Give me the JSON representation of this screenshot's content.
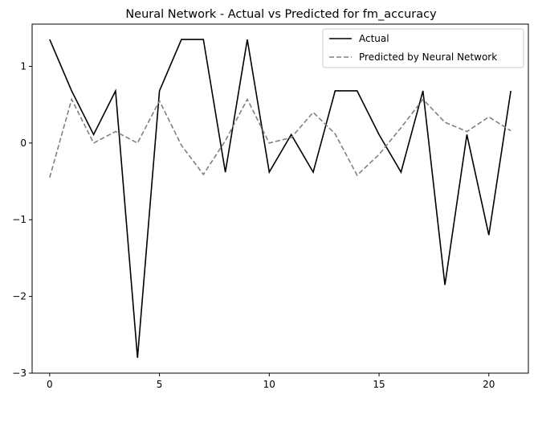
{
  "chart_data": {
    "type": "line",
    "title": "Neural Network - Actual vs Predicted for fm_accuracy",
    "xlabel": "",
    "ylabel": "",
    "xlim": [
      -0.8,
      21.8
    ],
    "ylim": [
      -3,
      1.55
    ],
    "x_ticks": [
      0,
      5,
      10,
      15,
      20
    ],
    "y_ticks": [
      1,
      0,
      -1,
      -2,
      -3
    ],
    "y_tick_labels": [
      "1",
      "0",
      "−1",
      "−2",
      "−3"
    ],
    "grid": false,
    "legend_position": "top-right",
    "x": [
      0,
      1,
      2,
      3,
      4,
      5,
      6,
      7,
      8,
      9,
      10,
      11,
      12,
      13,
      14,
      15,
      16,
      17,
      18,
      19,
      20,
      21
    ],
    "series": [
      {
        "name": "Actual",
        "color": "#000000",
        "style": "solid",
        "values": [
          1.35,
          0.68,
          0.11,
          0.68,
          -2.8,
          0.68,
          1.35,
          1.35,
          -0.38,
          1.35,
          -0.38,
          0.11,
          -0.38,
          0.68,
          0.68,
          0.11,
          -0.38,
          0.68,
          -1.85,
          0.11,
          -1.2,
          0.68
        ]
      },
      {
        "name": "Predicted by Neural Network",
        "color": "#808080",
        "style": "dashed",
        "values": [
          -0.45,
          0.57,
          0.0,
          0.15,
          0.0,
          0.55,
          -0.03,
          -0.41,
          0.03,
          0.57,
          0.0,
          0.07,
          0.4,
          0.12,
          -0.42,
          -0.15,
          0.2,
          0.57,
          0.27,
          0.15,
          0.34,
          0.16
        ]
      }
    ]
  }
}
